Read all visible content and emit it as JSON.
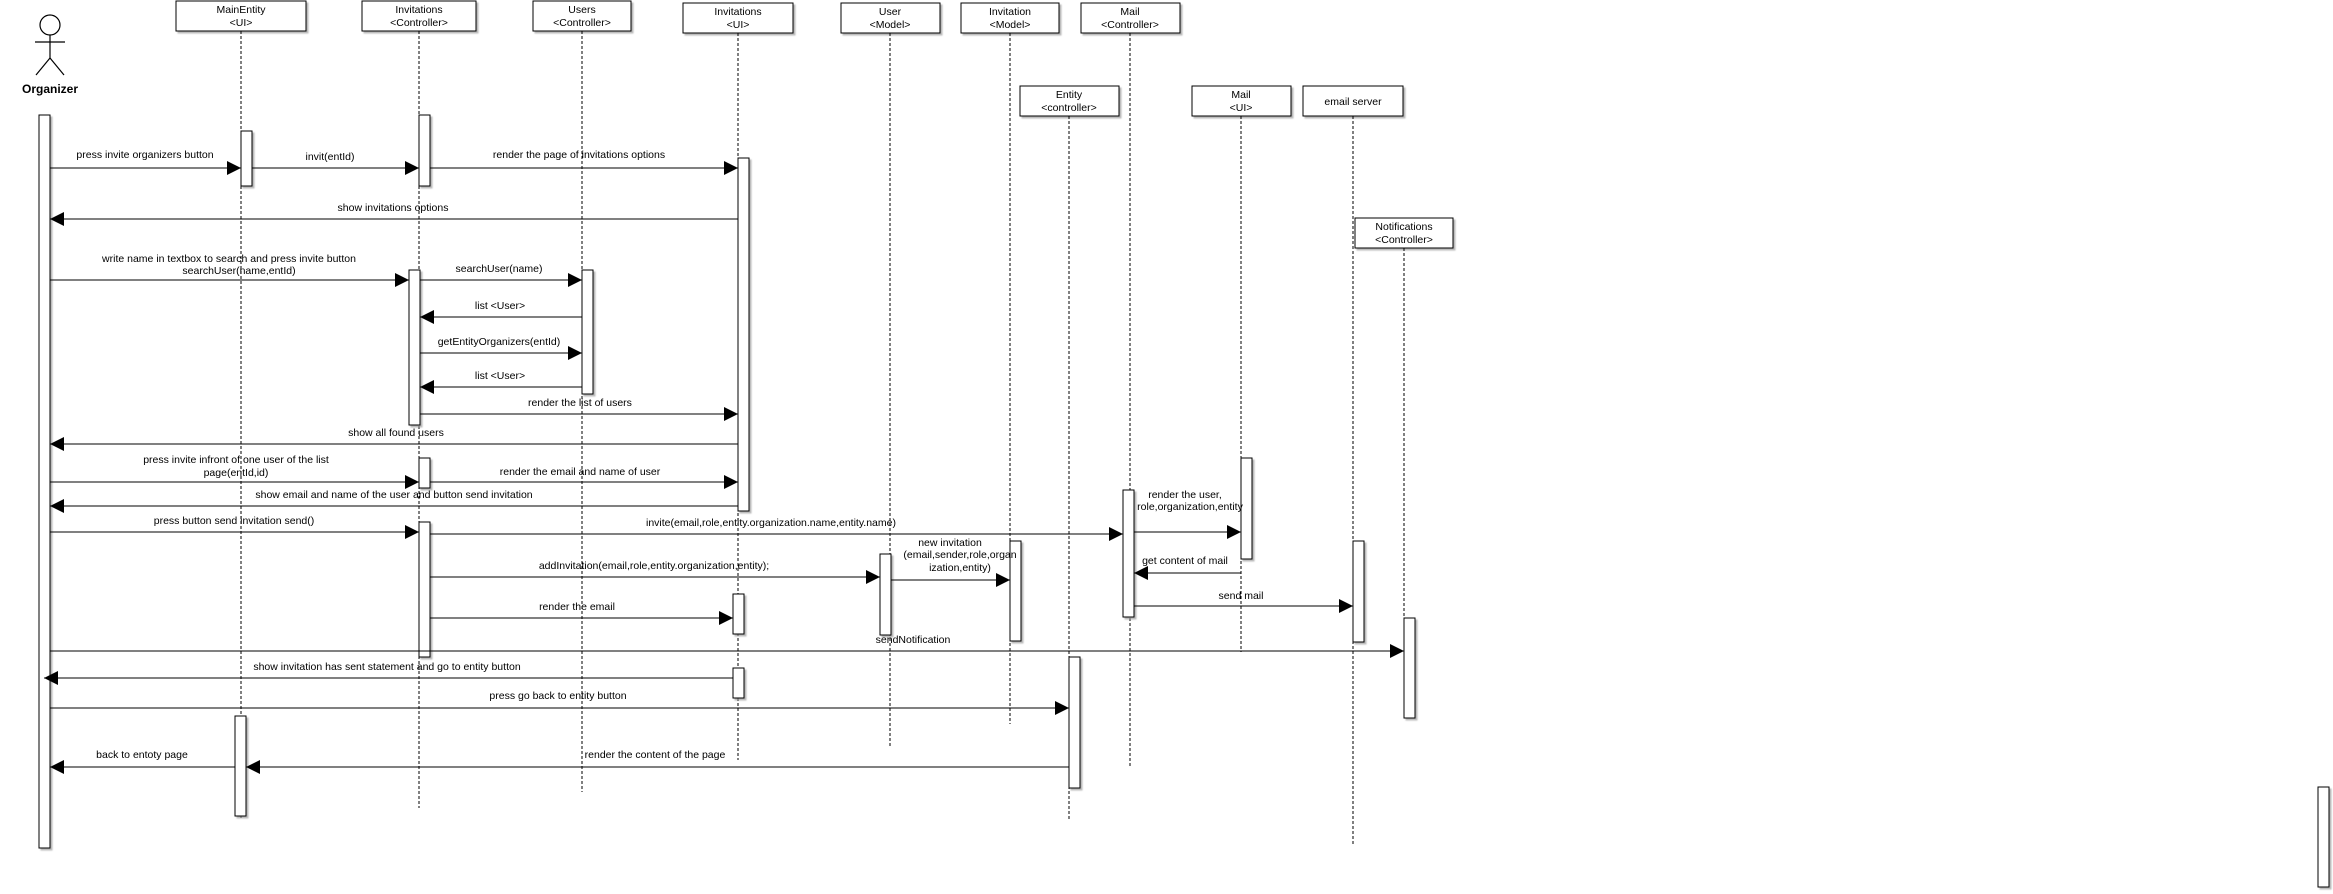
{
  "actor": {
    "label": "Organizer"
  },
  "participants": [
    {
      "id": "mainentity",
      "name": "MainEntity",
      "stereotype": "<UI>"
    },
    {
      "id": "invctrl",
      "name": "Invitations",
      "stereotype": "<Controller>"
    },
    {
      "id": "usersctrl",
      "name": "Users",
      "stereotype": "<Controller>"
    },
    {
      "id": "invui",
      "name": "Invitations",
      "stereotype": "<UI>"
    },
    {
      "id": "usermodel",
      "name": "User",
      "stereotype": "<Model>"
    },
    {
      "id": "invmodel",
      "name": "Invitation",
      "stereotype": "<Model>"
    },
    {
      "id": "mailctrl",
      "name": "Mail",
      "stereotype": "<Controller>"
    },
    {
      "id": "entityctrl",
      "name": "Entity",
      "stereotype": "<controller>"
    },
    {
      "id": "mailui",
      "name": "Mail",
      "stereotype": "<UI>"
    },
    {
      "id": "emailserver",
      "name": "email server",
      "stereotype": ""
    },
    {
      "id": "notifctrl",
      "name": "Notifications",
      "stereotype": "<Controller>"
    }
  ],
  "messages": [
    {
      "id": "m1",
      "label": [
        "press invite organizers button"
      ]
    },
    {
      "id": "m2",
      "label": [
        "invit(entId)"
      ]
    },
    {
      "id": "m3",
      "label": [
        "render the page of invitations options"
      ]
    },
    {
      "id": "m4",
      "label": [
        "show invitations options"
      ]
    },
    {
      "id": "m5",
      "label": [
        "write name in textbox to search and press invite button",
        "searchUser(name,entId)"
      ]
    },
    {
      "id": "m6",
      "label": [
        "searchUser(name)"
      ]
    },
    {
      "id": "m7",
      "label": [
        "list <User>"
      ]
    },
    {
      "id": "m8",
      "label": [
        "getEntityOrganizers(entId)"
      ]
    },
    {
      "id": "m9",
      "label": [
        "list <User>"
      ]
    },
    {
      "id": "m10",
      "label": [
        "render the list of users"
      ]
    },
    {
      "id": "m11",
      "label": [
        "show all found users"
      ]
    },
    {
      "id": "m12",
      "label": [
        "press invite infront of one user of the list",
        "page(entId,id)"
      ]
    },
    {
      "id": "m13",
      "label": [
        "render the email and name of user"
      ]
    },
    {
      "id": "m14",
      "label": [
        "show email and name of the user and button send invitation"
      ]
    },
    {
      "id": "m15",
      "label": [
        "press button send invitation  send()"
      ]
    },
    {
      "id": "m16",
      "label": [
        "invite(email,role,entity.organization.name,entity.name)"
      ]
    },
    {
      "id": "m17",
      "label": [
        "render the user,",
        "role,organization,entity"
      ]
    },
    {
      "id": "m18",
      "label": [
        "addInvitation(email,role,entity.organization,entity);"
      ]
    },
    {
      "id": "m19",
      "label": [
        "new invitation",
        "(email,sender,role,organ",
        "ization,entity)"
      ]
    },
    {
      "id": "m20",
      "label": [
        "get content of mail"
      ]
    },
    {
      "id": "m21",
      "label": [
        "render the email"
      ]
    },
    {
      "id": "m22",
      "label": [
        "send mail"
      ]
    },
    {
      "id": "m23",
      "label": [
        "sendNotification"
      ]
    },
    {
      "id": "m24",
      "label": [
        "show invitation has sent statement and go to entity button"
      ]
    },
    {
      "id": "m25",
      "label": [
        "press go back to entity button"
      ]
    },
    {
      "id": "m26",
      "label": [
        "render the content of the page"
      ]
    },
    {
      "id": "m27",
      "label": [
        "back to entoty page"
      ]
    }
  ]
}
